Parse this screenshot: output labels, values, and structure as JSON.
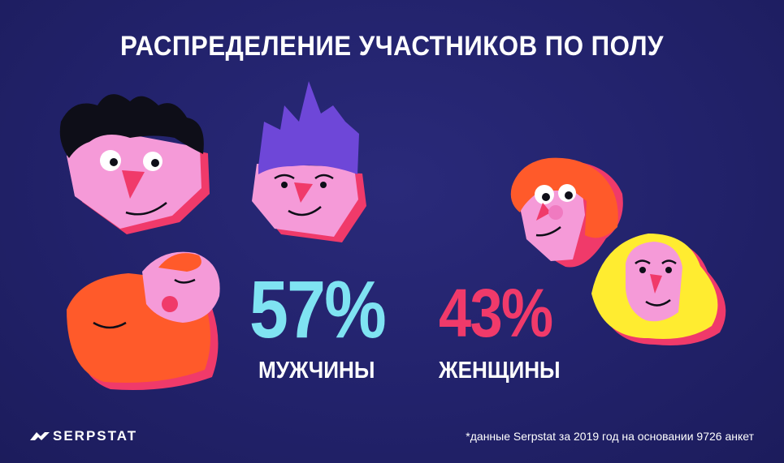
{
  "title": "РАСПРЕДЕЛЕНИЕ УЧАСТНИКОВ ПО ПОЛУ",
  "stats": {
    "male": {
      "value": "57%",
      "label": "МУЖЧИНЫ",
      "color": "#7fe3f2"
    },
    "female": {
      "value": "43%",
      "label": "ЖЕНЩИНЫ",
      "color": "#f03a6a"
    }
  },
  "brand": {
    "name": "SERPSTAT",
    "icon": "serpstat-logo-icon"
  },
  "footnote": "*данные Serpstat за 2019 год на основании 9726 анкет",
  "colors": {
    "background": "#22226b",
    "skin": "#f59ad8",
    "nose": "#f03a6a",
    "hair_blue": "#6e47d8",
    "hair_orange": "#ff5a2a",
    "hair_yellow": "#ffec30"
  }
}
